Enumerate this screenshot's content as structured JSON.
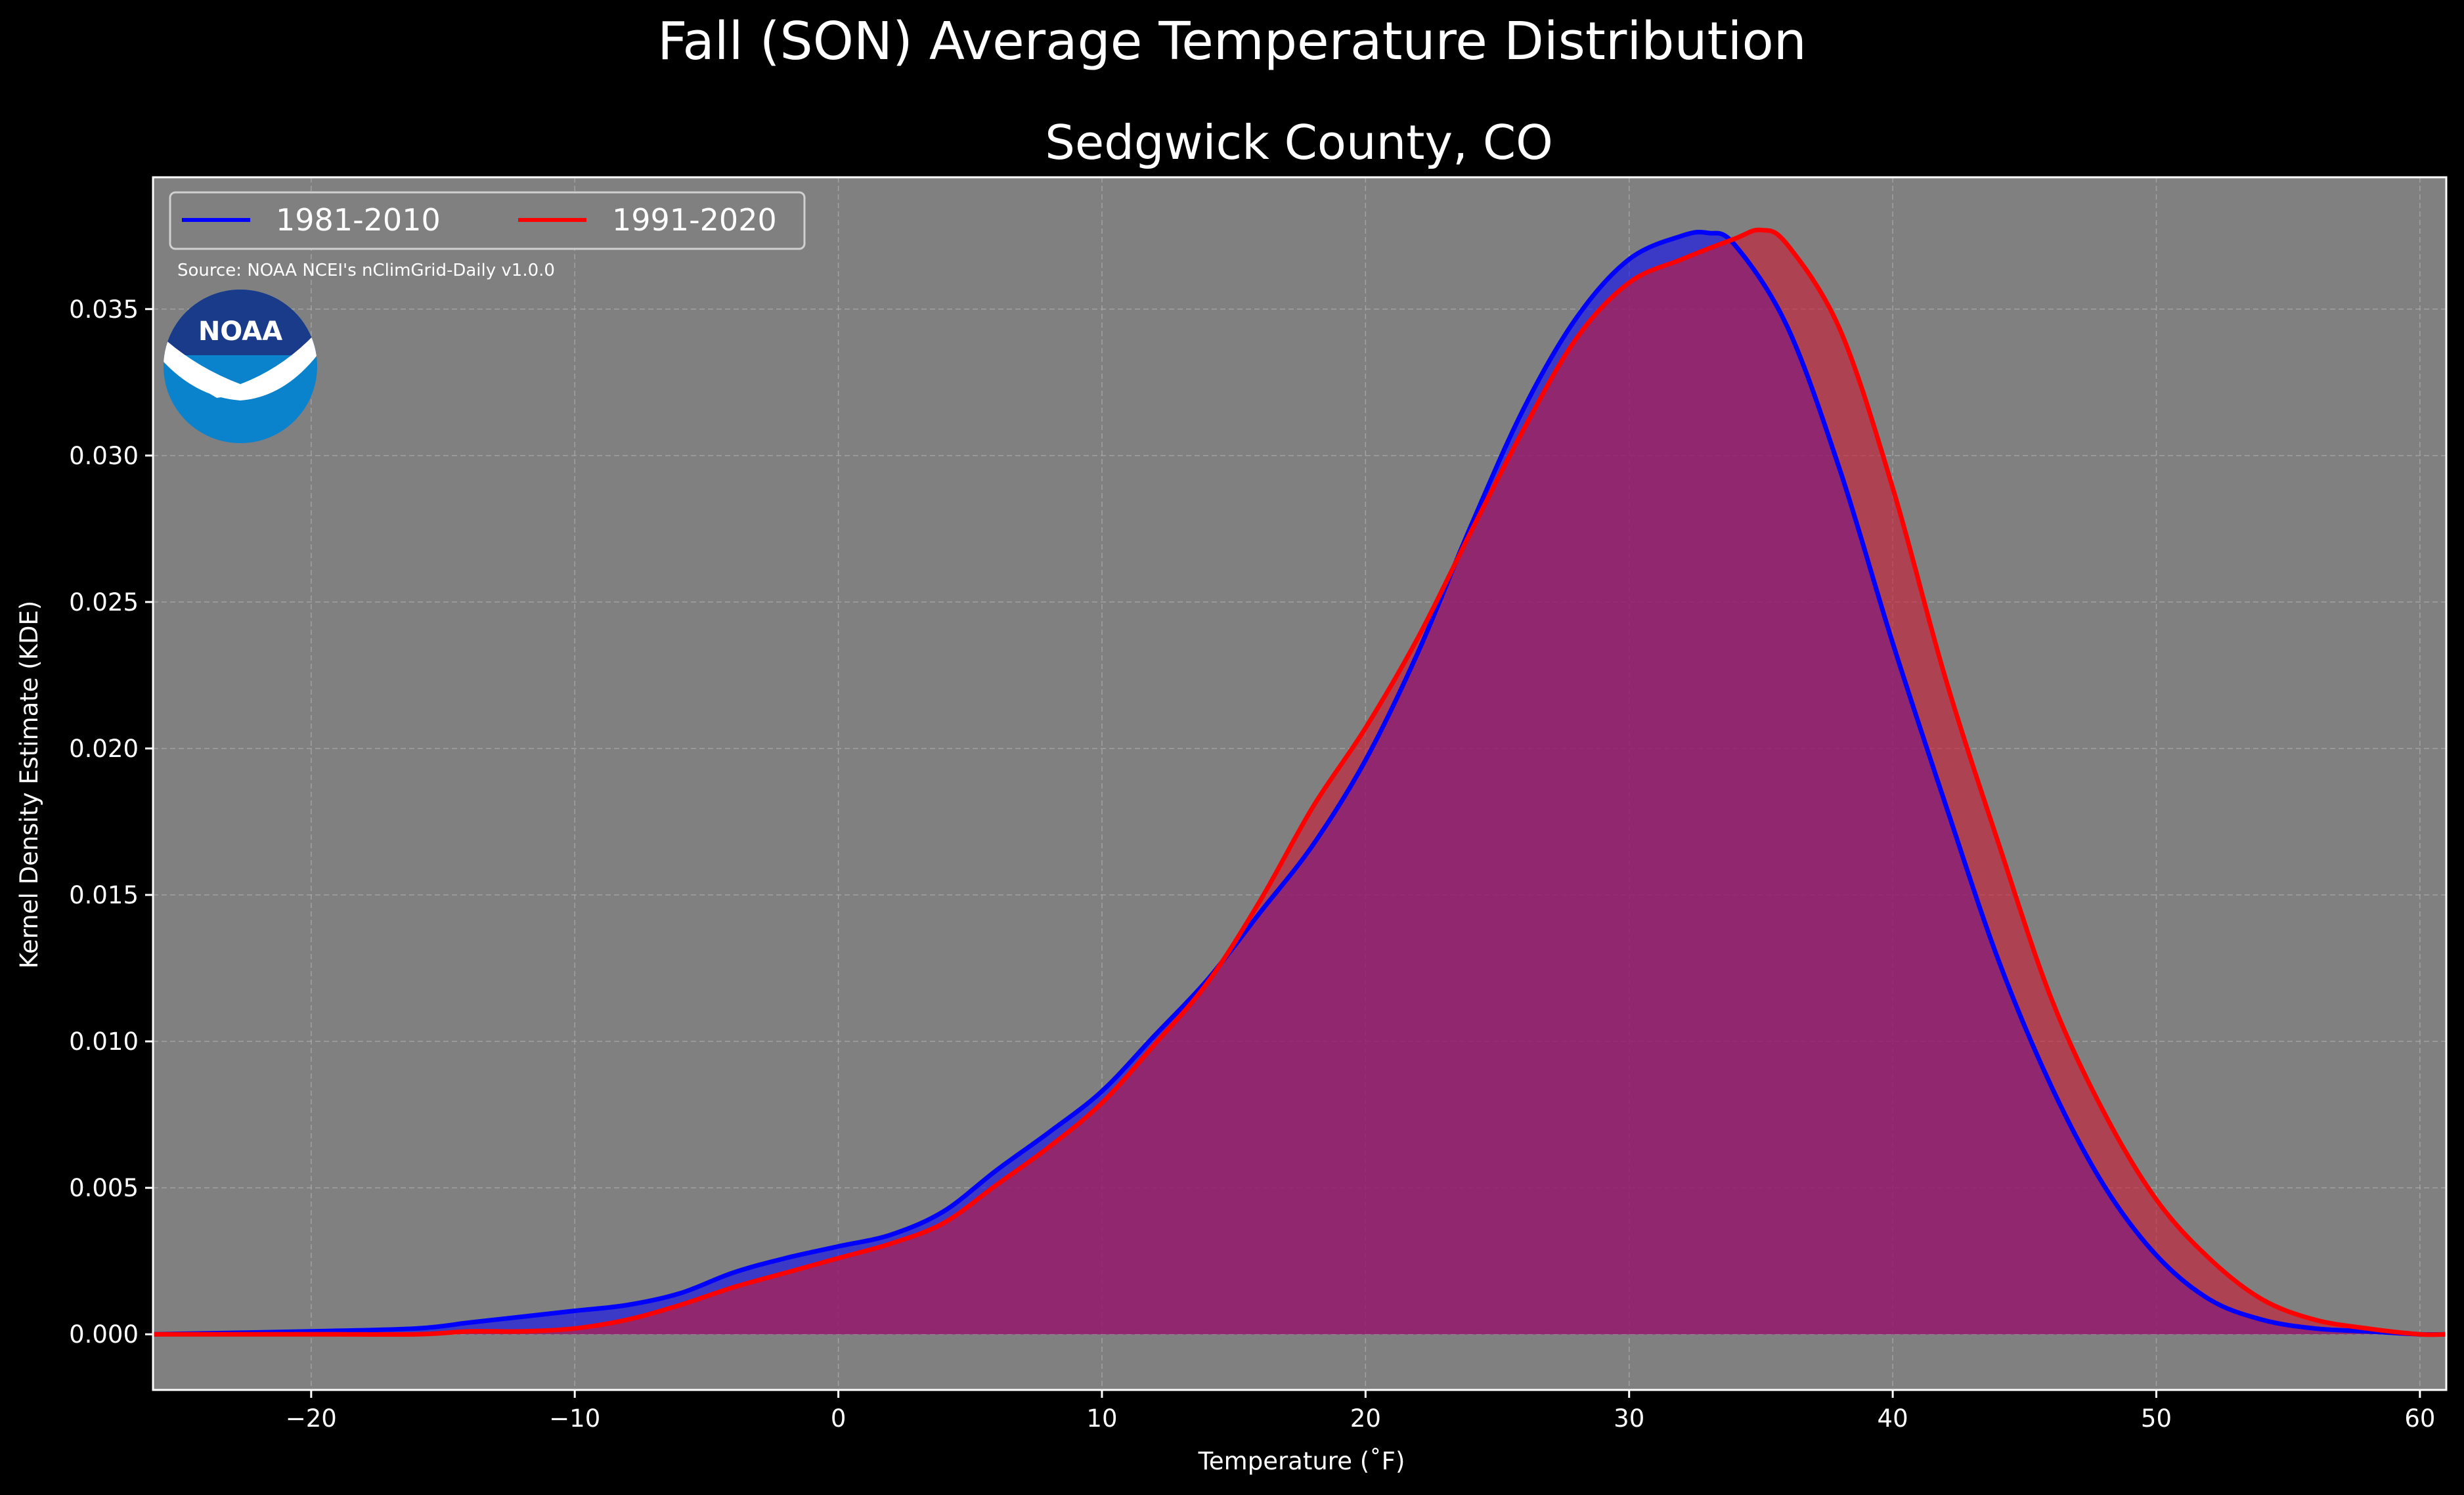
{
  "chart_data": {
    "type": "area",
    "title": "Fall (SON) Average Temperature Distribution",
    "subtitle": "Sedgwick County, CO",
    "xlabel": "Temperature (˚F)",
    "ylabel": "Kernel Density Estimate (KDE)",
    "xlim": [
      -26,
      61
    ],
    "ylim": [
      -0.0019,
      0.0395
    ],
    "xticks": [
      -20,
      -10,
      0,
      10,
      20,
      30,
      40,
      50,
      60
    ],
    "xtick_labels": [
      "−20",
      "−10",
      "0",
      "10",
      "20",
      "30",
      "40",
      "50",
      "60"
    ],
    "yticks": [
      0.0,
      0.005,
      0.01,
      0.015,
      0.02,
      0.025,
      0.03,
      0.035
    ],
    "ytick_labels": [
      "0.000",
      "0.005",
      "0.010",
      "0.015",
      "0.020",
      "0.025",
      "0.030",
      "0.035"
    ],
    "grid": true,
    "legend_position": "top-left",
    "background_color": "#808080",
    "source_note": "Source: NOAA NCEI's nClimGrid-Daily v1.0.0",
    "logo_text": "NOAA",
    "series": [
      {
        "name": "1981-2010",
        "color": "#0000ff",
        "fill_color": "#0000ff",
        "x": [
          -26,
          -20,
          -16,
          -14,
          -12,
          -10,
          -8,
          -6,
          -4,
          -2,
          0,
          2,
          4,
          6,
          8,
          10,
          12,
          14,
          16,
          18,
          20,
          22,
          24,
          26,
          28,
          30,
          32,
          33,
          34,
          36,
          38,
          40,
          42,
          44,
          46,
          48,
          50,
          52,
          54,
          56,
          58,
          60,
          61
        ],
        "y": [
          0.0,
          0.0001,
          0.0002,
          0.0004,
          0.0006,
          0.0008,
          0.001,
          0.0014,
          0.0021,
          0.0026,
          0.003,
          0.0034,
          0.0042,
          0.0056,
          0.0069,
          0.0083,
          0.0102,
          0.0121,
          0.0144,
          0.0167,
          0.0196,
          0.0233,
          0.0276,
          0.0316,
          0.0347,
          0.0367,
          0.0375,
          0.0376,
          0.0372,
          0.0344,
          0.0295,
          0.0236,
          0.0181,
          0.0128,
          0.0085,
          0.0051,
          0.0027,
          0.0012,
          0.0005,
          0.0002,
          0.0001,
          0.0,
          0.0
        ]
      },
      {
        "name": "1991-2020",
        "color": "#ff0000",
        "fill_color": "#cc1a33",
        "x": [
          -26,
          -20,
          -16,
          -14,
          -12,
          -10,
          -8,
          -6,
          -4,
          -2,
          0,
          2,
          4,
          6,
          8,
          10,
          12,
          14,
          16,
          18,
          20,
          22,
          24,
          26,
          28,
          30,
          32,
          34,
          35,
          36,
          38,
          40,
          42,
          44,
          46,
          48,
          50,
          52,
          54,
          56,
          58,
          60,
          61
        ],
        "y": [
          0.0,
          0.0,
          0.0,
          0.0001,
          0.0001,
          0.0002,
          0.0005,
          0.001,
          0.0016,
          0.0021,
          0.0026,
          0.0031,
          0.0038,
          0.0051,
          0.0064,
          0.0079,
          0.0099,
          0.012,
          0.0148,
          0.018,
          0.0207,
          0.0238,
          0.0274,
          0.0309,
          0.034,
          0.0359,
          0.0367,
          0.0374,
          0.0377,
          0.0372,
          0.0343,
          0.0289,
          0.0224,
          0.0168,
          0.0115,
          0.0076,
          0.0046,
          0.0026,
          0.0012,
          0.0005,
          0.0002,
          0.0,
          0.0
        ]
      }
    ]
  }
}
